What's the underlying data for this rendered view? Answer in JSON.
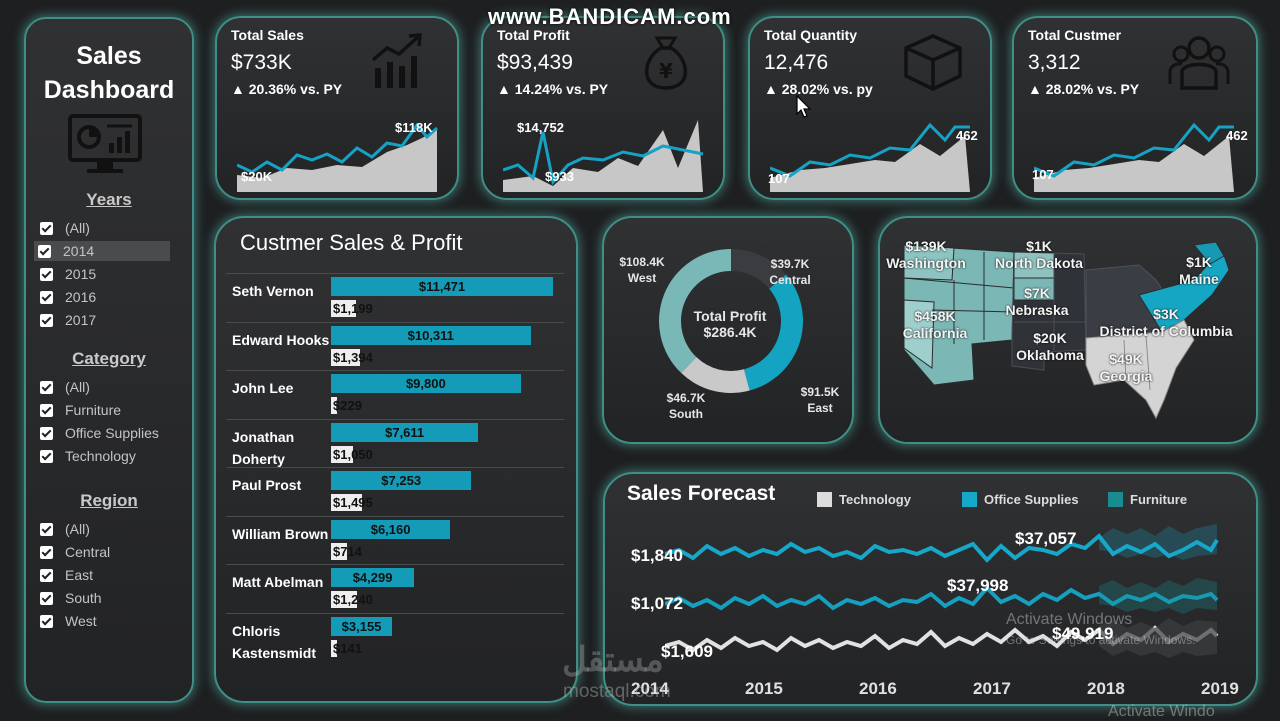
{
  "overlay": {
    "bandicam": "www.BANDICAM.com",
    "activate_windows": "Activate Windows",
    "activate_sub": "Go to Settings to activate Windows.",
    "mostaql_arabic": "مستقل",
    "mostaql_url": "mostaql.com",
    "activate_bottom": "Activate Windo"
  },
  "sidebar": {
    "title_line1": "Sales",
    "title_line2": "Dashboard",
    "icon": "monitor-chart-icon",
    "years": {
      "heading": "Years",
      "items": [
        "(All)",
        "2014",
        "2015",
        "2016",
        "2017"
      ],
      "selected": "2014"
    },
    "category": {
      "heading": "Category",
      "items": [
        "(All)",
        "Furniture",
        "Office Supplies",
        "Technology"
      ]
    },
    "region": {
      "heading": "Region",
      "items": [
        "(All)",
        "Central",
        "East",
        "South",
        "West"
      ]
    }
  },
  "kpis": [
    {
      "title": "Total Sales",
      "value": "$733K",
      "delta": "▲ 20.36% vs. PY",
      "icon": "growth-chart-icon",
      "min_label": "$20K",
      "max_label": "$118K"
    },
    {
      "title": "Total Profit",
      "value": "$93,439",
      "delta": "▲ 14.24% vs. PY",
      "icon": "money-bag-yen-icon",
      "min_label": "$933",
      "max_label": "$14,752"
    },
    {
      "title": "Total Quantity",
      "value": "12,476",
      "delta": "▲ 28.02% vs. py",
      "icon": "box-icon",
      "min_label": "107",
      "max_label": "462"
    },
    {
      "title": "Total Custmer",
      "value": "3,312",
      "delta": "▲ 28.02% vs. PY",
      "icon": "people-group-icon",
      "min_label": "107",
      "max_label": "462"
    }
  ],
  "customers": {
    "title": "Custmer Sales & Profit",
    "rows": [
      {
        "name": "Seth Vernon",
        "sales": "$11,471",
        "profit": "$1,199",
        "sales_value": 11471,
        "profit_value": 1199
      },
      {
        "name": "Edward Hooks",
        "sales": "$10,311",
        "profit": "$1,394",
        "sales_value": 10311,
        "profit_value": 1394
      },
      {
        "name": "John Lee",
        "sales": "$9,800",
        "profit": "$229",
        "sales_value": 9800,
        "profit_value": 229
      },
      {
        "name": "Jonathan Doherty",
        "sales": "$7,611",
        "profit": "$1,050",
        "sales_value": 7611,
        "profit_value": 1050
      },
      {
        "name": "Paul Prost",
        "sales": "$7,253",
        "profit": "$1,495",
        "sales_value": 7253,
        "profit_value": 1495
      },
      {
        "name": "William Brown",
        "sales": "$6,160",
        "profit": "$714",
        "sales_value": 6160,
        "profit_value": 714
      },
      {
        "name": "Matt Abelman",
        "sales": "$4,299",
        "profit": "$1,240",
        "sales_value": 4299,
        "profit_value": 1240
      },
      {
        "name": "Chloris Kastensmidt",
        "sales": "$3,155",
        "profit": "$141",
        "sales_value": 3155,
        "profit_value": 141
      }
    ]
  },
  "donut": {
    "center_title": "Total Profit",
    "center_value": "$286.4K",
    "segments": [
      {
        "region": "West",
        "label": "$108.4K",
        "value": 108.4,
        "color": "#7ab8b7"
      },
      {
        "region": "Central",
        "label": "$39.7K",
        "value": 39.7,
        "color": "#3a3c40"
      },
      {
        "region": "East",
        "label": "$91.5K",
        "value": 91.5,
        "color": "#14a3c0"
      },
      {
        "region": "South",
        "label": "$46.7K",
        "value": 46.7,
        "color": "#c9c9c9"
      }
    ]
  },
  "map": {
    "labels": [
      {
        "value": "$139K",
        "state": "Washington"
      },
      {
        "value": "$1K",
        "state": "North Dakota"
      },
      {
        "value": "$1K",
        "state": "Maine"
      },
      {
        "value": "$7K",
        "state": "Nebraska"
      },
      {
        "value": "$3K",
        "state": "District of Columbia"
      },
      {
        "value": "$458K",
        "state": "California"
      },
      {
        "value": "$20K",
        "state": "Oklahoma"
      },
      {
        "value": "$49K",
        "state": "Georgia"
      }
    ]
  },
  "forecast": {
    "title": "Sales Forecast",
    "legend": [
      {
        "name": "Technology",
        "color": "#dcdcdc"
      },
      {
        "name": "Office Supplies",
        "color": "#17a7c9"
      },
      {
        "name": "Furniture",
        "color": "#1a8b90"
      }
    ],
    "labels": [
      "$1,840",
      "$37,057",
      "$1,072",
      "$37,998",
      "$49,919",
      "$1,609"
    ],
    "years": [
      "2014",
      "2015",
      "2016",
      "2017",
      "2018",
      "2019"
    ]
  }
}
